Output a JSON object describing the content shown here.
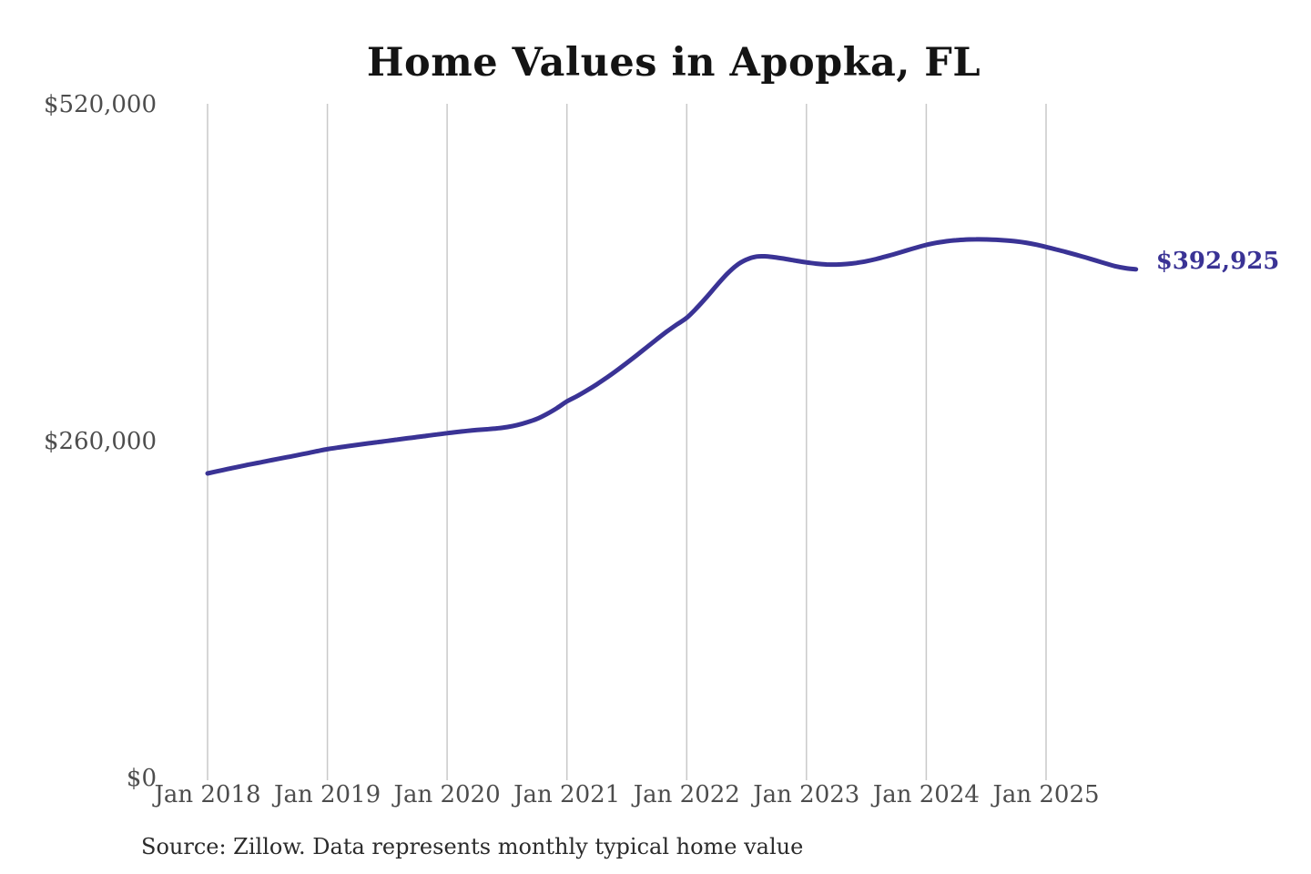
{
  "chart": {
    "title": "Home Values in Apopka, FL",
    "latest_value_label": "$392,925",
    "source_note": "Source: Zillow. Data represents monthly typical home value",
    "accent_color": "#3a3395",
    "grid_color": "#c9c9c9",
    "tick_text_color": "#4d4d4d"
  },
  "chart_data": {
    "type": "line",
    "title": "Home Values in Apopka, FL",
    "series_name": "Monthly typical home value",
    "frequency": "monthly",
    "start_month": "Jan 2018",
    "end_month": "Oct 2025",
    "latest_value": 392925,
    "ylim": [
      0,
      520000
    ],
    "grid": "vertical-only",
    "legend": "none",
    "y_ticks": [
      {
        "label": "$520,000",
        "value": 520000
      },
      {
        "label": "$260,000",
        "value": 260000
      },
      {
        "label": "$0",
        "value": 0
      }
    ],
    "x_ticks": [
      {
        "label": "Jan 2018",
        "month_index": 0
      },
      {
        "label": "Jan 2019",
        "month_index": 12
      },
      {
        "label": "Jan 2020",
        "month_index": 24
      },
      {
        "label": "Jan 2021",
        "month_index": 36
      },
      {
        "label": "Jan 2022",
        "month_index": 48
      },
      {
        "label": "Jan 2023",
        "month_index": 60
      },
      {
        "label": "Jan 2024",
        "month_index": 72
      },
      {
        "label": "Jan 2025",
        "month_index": 84
      }
    ],
    "values": [
      235400,
      237100,
      238800,
      240400,
      242000,
      243500,
      245000,
      246500,
      248000,
      249500,
      251000,
      252600,
      254100,
      255300,
      256400,
      257500,
      258500,
      259500,
      260500,
      261500,
      262500,
      263500,
      264500,
      265500,
      266500,
      267400,
      268200,
      268900,
      269500,
      270200,
      271200,
      272700,
      274800,
      277500,
      281300,
      285800,
      291000,
      295000,
      299400,
      304200,
      309400,
      314900,
      320700,
      326700,
      332800,
      338900,
      344800,
      350300,
      355500,
      363000,
      371500,
      380500,
      389000,
      396000,
      400500,
      402800,
      402900,
      402000,
      400800,
      399500,
      398300,
      397300,
      396700,
      396600,
      397000,
      397900,
      399200,
      400900,
      402900,
      405100,
      407400,
      409700,
      411800,
      413400,
      414600,
      415400,
      415900,
      416100,
      416000,
      415700,
      415200,
      414500,
      413500,
      412000,
      410200,
      408300,
      406300,
      404200,
      402000,
      399700,
      397400,
      395200,
      393800,
      392925
    ]
  }
}
